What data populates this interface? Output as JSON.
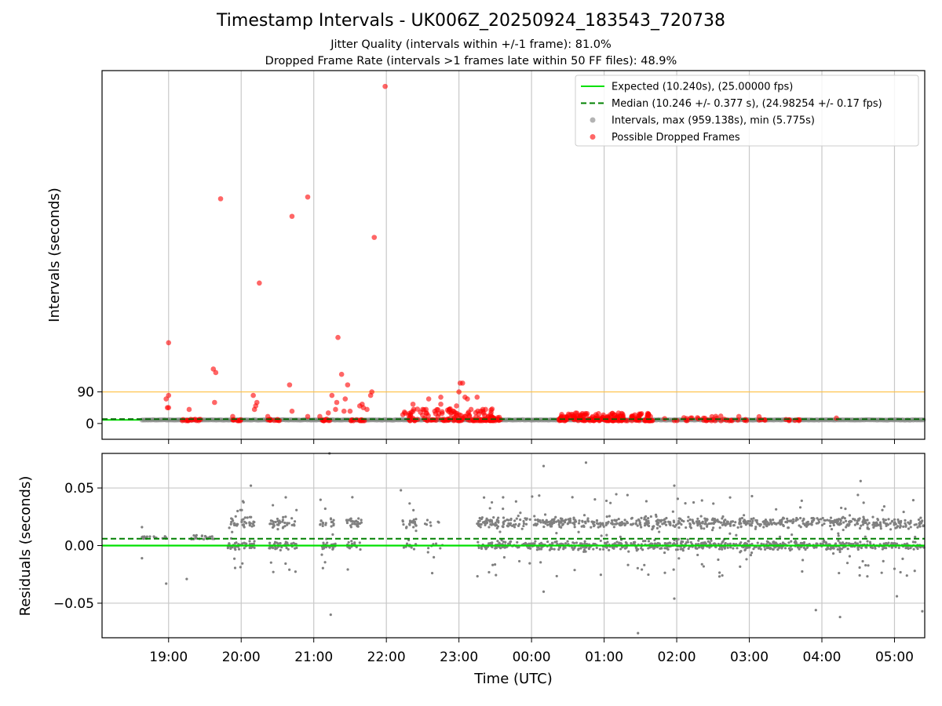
{
  "chart_data": [
    {
      "type": "scatter",
      "title": "Timestamp Intervals - UK006Z_20250924_183543_720738",
      "subtitles": [
        "Jitter Quality (intervals within +/-1 frame): 81.0%",
        "Dropped Frame Rate (intervals >1 frames late within 50 FF files): 48.9%"
      ],
      "ylabel": "Intervals (seconds)",
      "xlim": [
        "18:05",
        "05:25"
      ],
      "ylim": [
        -45,
        1005
      ],
      "yticks": [
        0,
        90
      ],
      "xticks": [
        "19:00",
        "20:00",
        "21:00",
        "22:00",
        "23:00",
        "00:00",
        "01:00",
        "02:00",
        "03:00",
        "04:00",
        "05:00"
      ],
      "grid": "vertical",
      "legend_position": "upper right",
      "legend": [
        {
          "label": "Expected (10.240s), (25.00000 fps)",
          "style": "solid-line",
          "color": "#00e000"
        },
        {
          "label": "Median (10.246 +/- 0.377 s), (24.98254 +/- 0.17 fps)",
          "style": "dashed-line",
          "color": "#008000"
        },
        {
          "label": "Intervals, max (959.138s), min (5.775s)",
          "style": "marker",
          "color": "#808080"
        },
        {
          "label": "Possible Dropped Frames",
          "style": "marker",
          "color": "#ff0000"
        }
      ],
      "expected_interval": 10.24,
      "median_interval": 10.246,
      "threshold_line": 90,
      "threshold_color": "#ffc040",
      "baseline_segments": [
        {
          "from": "18:38",
          "to": "23:30",
          "y": 10.24
        },
        {
          "from": "23:30",
          "to": "05:25",
          "y": 10.24
        }
      ],
      "dropped_frames": [
        {
          "time": "19:00",
          "y": 230
        },
        {
          "time": "19:00",
          "y": 80
        },
        {
          "time": "18:59",
          "y": 45
        },
        {
          "time": "19:00",
          "y": 45
        },
        {
          "time": "18:58",
          "y": 70
        },
        {
          "time": "19:17",
          "y": 40
        },
        {
          "time": "19:37",
          "y": 155
        },
        {
          "time": "19:39",
          "y": 145
        },
        {
          "time": "19:38",
          "y": 60
        },
        {
          "time": "19:43",
          "y": 640
        },
        {
          "time": "19:53",
          "y": 20
        },
        {
          "time": "20:10",
          "y": 80
        },
        {
          "time": "20:12",
          "y": 50
        },
        {
          "time": "20:13",
          "y": 60
        },
        {
          "time": "20:11",
          "y": 40
        },
        {
          "time": "20:15",
          "y": 400
        },
        {
          "time": "20:22",
          "y": 20
        },
        {
          "time": "20:40",
          "y": 110
        },
        {
          "time": "20:42",
          "y": 590
        },
        {
          "time": "20:42",
          "y": 35
        },
        {
          "time": "20:55",
          "y": 645
        },
        {
          "time": "20:55",
          "y": 20
        },
        {
          "time": "21:05",
          "y": 20
        },
        {
          "time": "21:12",
          "y": 30
        },
        {
          "time": "21:15",
          "y": 80
        },
        {
          "time": "21:18",
          "y": 40
        },
        {
          "time": "21:19",
          "y": 60
        },
        {
          "time": "21:20",
          "y": 245
        },
        {
          "time": "21:23",
          "y": 140
        },
        {
          "time": "21:25",
          "y": 35
        },
        {
          "time": "21:26",
          "y": 70
        },
        {
          "time": "21:28",
          "y": 110
        },
        {
          "time": "21:30",
          "y": 35
        },
        {
          "time": "21:38",
          "y": 50
        },
        {
          "time": "21:40",
          "y": 55
        },
        {
          "time": "21:41",
          "y": 45
        },
        {
          "time": "21:44",
          "y": 40
        },
        {
          "time": "21:47",
          "y": 80
        },
        {
          "time": "21:48",
          "y": 90
        },
        {
          "time": "21:50",
          "y": 530
        },
        {
          "time": "21:59",
          "y": 960
        },
        {
          "time": "22:22",
          "y": 55
        },
        {
          "time": "22:30",
          "y": 40
        },
        {
          "time": "22:35",
          "y": 70
        },
        {
          "time": "22:40",
          "y": 35
        },
        {
          "time": "22:45",
          "y": 55
        },
        {
          "time": "22:45",
          "y": 75
        },
        {
          "time": "22:52",
          "y": 40
        },
        {
          "time": "22:57",
          "y": 30
        },
        {
          "time": "22:58",
          "y": 50
        },
        {
          "time": "23:01",
          "y": 115
        },
        {
          "time": "23:03",
          "y": 115
        },
        {
          "time": "23:00",
          "y": 90
        },
        {
          "time": "23:05",
          "y": 75
        },
        {
          "time": "23:07",
          "y": 70
        },
        {
          "time": "23:10",
          "y": 40
        },
        {
          "time": "23:15",
          "y": 75
        },
        {
          "time": "23:18",
          "y": 35
        },
        {
          "time": "23:22",
          "y": 40
        }
      ],
      "dropped_frame_clusters": [
        {
          "from": "19:10",
          "to": "19:28",
          "ymin": 8,
          "ymax": 12,
          "count": 14
        },
        {
          "from": "19:53",
          "to": "20:00",
          "ymin": 8,
          "ymax": 12,
          "count": 8
        },
        {
          "from": "20:22",
          "to": "20:32",
          "ymin": 8,
          "ymax": 12,
          "count": 10
        },
        {
          "from": "21:05",
          "to": "21:14",
          "ymin": 8,
          "ymax": 14,
          "count": 9
        },
        {
          "from": "21:30",
          "to": "21:42",
          "ymin": 8,
          "ymax": 12,
          "count": 12
        },
        {
          "from": "22:13",
          "to": "23:30",
          "ymin": 8,
          "ymax": 42,
          "count": 130
        },
        {
          "from": "23:20",
          "to": "23:35",
          "ymin": 8,
          "ymax": 20,
          "count": 16
        },
        {
          "from": "00:22",
          "to": "01:40",
          "ymin": 8,
          "ymax": 30,
          "count": 190
        },
        {
          "from": "01:40",
          "to": "03:15",
          "ymin": 8,
          "ymax": 22,
          "count": 40
        },
        {
          "from": "03:30",
          "to": "03:42",
          "ymin": 8,
          "ymax": 12,
          "count": 8
        },
        {
          "from": "04:12",
          "to": "04:12",
          "ymin": 14,
          "ymax": 16,
          "count": 1
        }
      ]
    },
    {
      "type": "scatter",
      "xlabel": "Time (UTC)",
      "ylabel": "Residuals (seconds)",
      "xlim": [
        "18:05",
        "05:25"
      ],
      "ylim": [
        -0.08,
        0.08
      ],
      "yticks": [
        0.05,
        0.0,
        -0.05
      ],
      "ytick_labels": [
        "0.05",
        "0.00",
        "−0.05"
      ],
      "xticks": [
        "19:00",
        "20:00",
        "21:00",
        "22:00",
        "23:00",
        "00:00",
        "01:00",
        "02:00",
        "03:00",
        "04:00",
        "05:00"
      ],
      "grid": "both",
      "expected_residual": 0.0,
      "median_residual": 0.006,
      "residual_point_color": "#808080",
      "outliers": [
        {
          "time": "18:38",
          "y": 0.016
        },
        {
          "time": "18:38",
          "y": -0.011
        },
        {
          "time": "18:58",
          "y": -0.033
        },
        {
          "time": "19:15",
          "y": -0.029
        },
        {
          "time": "20:08",
          "y": 0.052
        },
        {
          "time": "21:13",
          "y": 0.08
        },
        {
          "time": "21:14",
          "y": -0.06
        },
        {
          "time": "22:12",
          "y": 0.048
        },
        {
          "time": "00:10",
          "y": 0.069
        },
        {
          "time": "00:10",
          "y": -0.04
        },
        {
          "time": "00:45",
          "y": 0.072
        },
        {
          "time": "01:28",
          "y": -0.076
        },
        {
          "time": "01:58",
          "y": 0.052
        },
        {
          "time": "01:58",
          "y": -0.046
        },
        {
          "time": "03:55",
          "y": -0.056
        },
        {
          "time": "04:15",
          "y": -0.062
        },
        {
          "time": "04:32",
          "y": 0.056
        },
        {
          "time": "05:02",
          "y": -0.044
        },
        {
          "time": "05:23",
          "y": -0.057
        }
      ],
      "residual_clusters": [
        {
          "from": "18:38",
          "to": "19:00",
          "ymin": 0.006,
          "ymax": 0.008,
          "count": 20
        },
        {
          "from": "19:17",
          "to": "19:38",
          "ymin": 0.005,
          "ymax": 0.009,
          "count": 24
        },
        {
          "from": "19:49",
          "to": "20:11",
          "ymin": -0.027,
          "ymax": 0.043,
          "count": 90
        },
        {
          "from": "20:23",
          "to": "20:46",
          "ymin": -0.026,
          "ymax": 0.045,
          "count": 90
        },
        {
          "from": "21:05",
          "to": "21:18",
          "ymin": -0.027,
          "ymax": 0.043,
          "count": 50
        },
        {
          "from": "21:27",
          "to": "21:40",
          "ymin": -0.027,
          "ymax": 0.045,
          "count": 50
        },
        {
          "from": "22:13",
          "to": "22:25",
          "ymin": -0.027,
          "ymax": 0.043,
          "count": 40
        },
        {
          "from": "22:30",
          "to": "22:47",
          "ymin": -0.025,
          "ymax": 0.043,
          "count": 16
        },
        {
          "from": "23:15",
          "to": "05:25",
          "ymin": -0.027,
          "ymax": 0.045,
          "count": 1500
        }
      ]
    }
  ]
}
